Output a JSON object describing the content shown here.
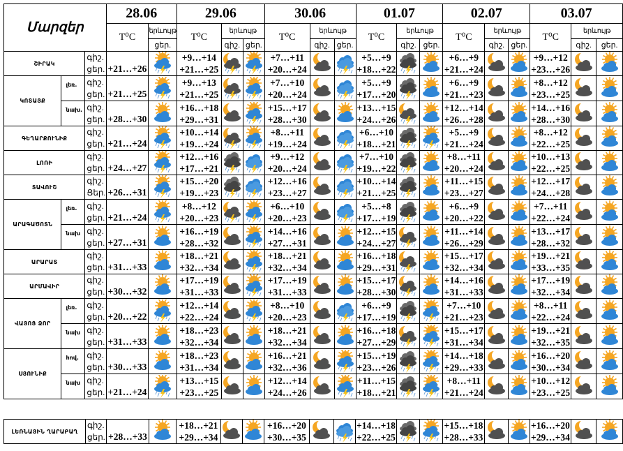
{
  "header": {
    "title": "Մարզեր",
    "temp_label": "T⁰C",
    "phenomenon_label": "երևույթ",
    "night_label": "գիշ.",
    "day_label": "ցեր.",
    "dates": [
      "28.06",
      "29.06",
      "30.06",
      "01.07",
      "02.07",
      "03.07"
    ]
  },
  "icon_legend": {
    "sc": "sun-behind-cloud-icon",
    "ssc": "sun-cloud-thunderstorm-icon",
    "rs": "rain-thunderstorm-cloud-icon",
    "mc": "moon-cloud-icon",
    "mcs": "moon-cloud-thunderstorm-icon",
    "ds": "dark-cloud-thunderstorm-icon"
  },
  "colors": {
    "sun": "#f5a623",
    "blue_cloud": "#2f86d6",
    "gray_cloud": "#505050",
    "lightning": "#f7c21a"
  },
  "regions": [
    {
      "name": "ՇԻՐԱԿ",
      "rows": [
        {
          "sub": "",
          "night_label": "գիշ.",
          "day_label": "ցեր.",
          "first": {
            "day": "+21…+26",
            "icon": "ssc"
          },
          "days": [
            {
              "night": "+9…+14",
              "day": "+21…+25",
              "n": "mcs",
              "d": "ssc"
            },
            {
              "night": "+7…+11",
              "day": "+20…+24",
              "n": "mc",
              "d": "rs"
            },
            {
              "night": "+5…+9",
              "day": "+18…+22",
              "n": "ds",
              "d": "sc"
            },
            {
              "night": "+6…+9",
              "day": "+21…+24",
              "n": "mc",
              "d": "sc"
            },
            {
              "night": "+9…+12",
              "day": "+23…+26",
              "n": "mc",
              "d": "sc"
            }
          ]
        }
      ]
    },
    {
      "name": "ԿՈՏԱՅՔ",
      "rows": [
        {
          "sub": "լեռ.",
          "night_label": "գիշ.",
          "day_label": "ցեր.",
          "first": {
            "day": "+21…+25",
            "icon": "ssc"
          },
          "days": [
            {
              "night": "+9…+13",
              "day": "+21…+25",
              "n": "mcs",
              "d": "ssc"
            },
            {
              "night": "+7…+10",
              "day": "+20…+24",
              "n": "mc",
              "d": "rs"
            },
            {
              "night": "+5…+9",
              "day": "+17…+20",
              "n": "ds",
              "d": "sc"
            },
            {
              "night": "+6…+9",
              "day": "+21…+23",
              "n": "mc",
              "d": "sc"
            },
            {
              "night": "+8…+12",
              "day": "+23…+25",
              "n": "mc",
              "d": "sc"
            }
          ]
        },
        {
          "sub": "նախ.",
          "night_label": "գիշ.",
          "day_label": "ցեր.",
          "first": {
            "day": "+28…+30",
            "icon": "sc"
          },
          "days": [
            {
              "night": "+16…+18",
              "day": "+29…+31",
              "n": "mc",
              "d": "ssc"
            },
            {
              "night": "+15…+17",
              "day": "+28…+30",
              "n": "mc",
              "d": "sc"
            },
            {
              "night": "+13…+15",
              "day": "+24…+26",
              "n": "mcs",
              "d": "sc"
            },
            {
              "night": "+12…+14",
              "day": "+26…+28",
              "n": "mc",
              "d": "sc"
            },
            {
              "night": "+14…+16",
              "day": "+28…+30",
              "n": "mc",
              "d": "sc"
            }
          ]
        }
      ]
    },
    {
      "name": "ԳԵՂԱՐՔՈՒՆԻՔ",
      "rows": [
        {
          "sub": "",
          "night_label": "գիշ.",
          "day_label": "ցեր.",
          "first": {
            "day": "+21…+24",
            "icon": "ssc"
          },
          "days": [
            {
              "night": "+10…+14",
              "day": "+19…+24",
              "n": "mcs",
              "d": "ssc"
            },
            {
              "night": "+8…+11",
              "day": "+19…+24",
              "n": "mc",
              "d": "rs"
            },
            {
              "night": "+6…+10",
              "day": "+18…+21",
              "n": "ds",
              "d": "ssc"
            },
            {
              "night": "+5…+9",
              "day": "+21…+24",
              "n": "mc",
              "d": "sc"
            },
            {
              "night": "+8…+12",
              "day": "+22…+25",
              "n": "mc",
              "d": "sc"
            }
          ]
        }
      ]
    },
    {
      "name": "ԼՈՌԻ",
      "rows": [
        {
          "sub": "",
          "night_label": "գիշ.",
          "day_label": "ցեր.",
          "first": {
            "day": "+24…+27",
            "icon": "ssc"
          },
          "days": [
            {
              "night": "+12…+16",
              "day": "+17…+21",
              "n": "ds",
              "d": "rs"
            },
            {
              "night": "+9…+12",
              "day": "+20…+24",
              "n": "mc",
              "d": "rs"
            },
            {
              "night": "+7…+10",
              "day": "+19…+22",
              "n": "ds",
              "d": "sc"
            },
            {
              "night": "+8…+11",
              "day": "+20…+24",
              "n": "mc",
              "d": "sc"
            },
            {
              "night": "+10…+13",
              "day": "+22…+25",
              "n": "mc",
              "d": "sc"
            }
          ]
        }
      ]
    },
    {
      "name": "ՏԱՎՈՒՇ",
      "rows": [
        {
          "sub": "",
          "night_label": "գիշ.",
          "day_label": "Ցեր.",
          "first": {
            "day": "+26…+31",
            "icon": "ssc"
          },
          "days": [
            {
              "night": "+15…+20",
              "day": "+19…+23",
              "n": "ds",
              "d": "rs"
            },
            {
              "night": "+12…+16",
              "day": "+23…+27",
              "n": "mc",
              "d": "rs"
            },
            {
              "night": "+10…+14",
              "day": "+21…+25",
              "n": "ds",
              "d": "sc"
            },
            {
              "night": "+11…+15",
              "day": "+23…+27",
              "n": "mc",
              "d": "sc"
            },
            {
              "night": "+12…+17",
              "day": "+24…+28",
              "n": "mc",
              "d": "sc"
            }
          ]
        }
      ]
    },
    {
      "name": "ԱՐԱԳԱԾՈՏՆ",
      "rows": [
        {
          "sub": "լեռ.",
          "night_label": "գիշ.",
          "day_label": "ցեր.",
          "first": {
            "day": "+21…+24",
            "icon": "ssc"
          },
          "days": [
            {
              "night": "+8…+12",
              "day": "+20…+23",
              "n": "mcs",
              "d": "ssc"
            },
            {
              "night": "+6…+10",
              "day": "+20…+23",
              "n": "mc",
              "d": "rs"
            },
            {
              "night": "+5…+8",
              "day": "+17…+19",
              "n": "ds",
              "d": "sc"
            },
            {
              "night": "+6…+9",
              "day": "+20…+22",
              "n": "mc",
              "d": "sc"
            },
            {
              "night": "+7…+11",
              "day": "+22…+24",
              "n": "mc",
              "d": "sc"
            }
          ]
        },
        {
          "sub": "նախ",
          "night_label": "գիշ.",
          "day_label": "ցեր.",
          "first": {
            "day": "+27…+31",
            "icon": "sc"
          },
          "days": [
            {
              "night": "+16…+19",
              "day": "+28…+32",
              "n": "mc",
              "d": "ssc"
            },
            {
              "night": "+14…+16",
              "day": "+27…+31",
              "n": "mc",
              "d": "sc"
            },
            {
              "night": "+12…+15",
              "day": "+24…+27",
              "n": "mcs",
              "d": "sc"
            },
            {
              "night": "+11…+14",
              "day": "+26…+29",
              "n": "mc",
              "d": "sc"
            },
            {
              "night": "+13…+17",
              "day": "+28…+32",
              "n": "mc",
              "d": "sc"
            }
          ]
        }
      ]
    },
    {
      "name": "ԱՐԱՐԱՏ",
      "rows": [
        {
          "sub": "",
          "night_label": "գիշ.",
          "day_label": "ցեր.",
          "first": {
            "day": "+31…+33",
            "icon": "sc"
          },
          "days": [
            {
              "night": "+18…+21",
              "day": "+32…+34",
              "n": "mc",
              "d": "ssc"
            },
            {
              "night": "+18…+21",
              "day": "+32…+34",
              "n": "mc",
              "d": "sc"
            },
            {
              "night": "+16…+18",
              "day": "+29…+31",
              "n": "mcs",
              "d": "sc"
            },
            {
              "night": "+15…+17",
              "day": "+32…+34",
              "n": "mc",
              "d": "sc"
            },
            {
              "night": "+19…+21",
              "day": "+33…+35",
              "n": "mc",
              "d": "sc"
            }
          ]
        }
      ]
    },
    {
      "name": "ԱՐՄԱՎԻՐ",
      "rows": [
        {
          "sub": "",
          "night_label": "գիշ.",
          "day_label": "ցեր.",
          "first": {
            "day": "+30…+32",
            "icon": "sc"
          },
          "days": [
            {
              "night": "+17…+19",
              "day": "+31…+33",
              "n": "mc",
              "d": "ssc"
            },
            {
              "night": "+17…+19",
              "day": "+31…+33",
              "n": "mc",
              "d": "sc"
            },
            {
              "night": "+15…+17",
              "day": "+28…+30",
              "n": "mcs",
              "d": "sc"
            },
            {
              "night": "+14…+16",
              "day": "+31…+33",
              "n": "mc",
              "d": "sc"
            },
            {
              "night": "+17…+19",
              "day": "+32…+34",
              "n": "mc",
              "d": "sc"
            }
          ]
        }
      ]
    },
    {
      "name": "ՎԱՅՈՑ ՁՈՐ",
      "rows": [
        {
          "sub": "լեռ.",
          "night_label": "գիշ.",
          "day_label": "ցեր.",
          "first": {
            "day": "+20…+22",
            "icon": "ssc"
          },
          "days": [
            {
              "night": "+12…+14",
              "day": "+22…+24",
              "n": "mc",
              "d": "ssc"
            },
            {
              "night": "+8…+10",
              "day": "+20…+23",
              "n": "mc",
              "d": "rs"
            },
            {
              "night": "+6…+9",
              "day": "+17…+19",
              "n": "ds",
              "d": "ssc"
            },
            {
              "night": "+7…+10",
              "day": "+21…+23",
              "n": "mc",
              "d": "sc"
            },
            {
              "night": "+8…+11",
              "day": "+22…+24",
              "n": "mc",
              "d": "sc"
            }
          ]
        },
        {
          "sub": "նախ",
          "night_label": "գիշ.",
          "day_label": "ցեր.",
          "first": {
            "day": "+31…+33",
            "icon": "sc"
          },
          "days": [
            {
              "night": "+18…+23",
              "day": "+32…+34",
              "n": "mc",
              "d": "sc"
            },
            {
              "night": "+18…+21",
              "day": "+32…+34",
              "n": "mc",
              "d": "sc"
            },
            {
              "night": "+16…+18",
              "day": "+27…+29",
              "n": "mcs",
              "d": "ssc"
            },
            {
              "night": "+15…+17",
              "day": "+31…+34",
              "n": "mc",
              "d": "sc"
            },
            {
              "night": "+19…+21",
              "day": "+32…+35",
              "n": "mc",
              "d": "sc"
            }
          ]
        }
      ]
    },
    {
      "name": "ՍՅՈՒՆԻՔ",
      "rows": [
        {
          "sub": "հով.",
          "night_label": "գիշ.",
          "day_label": "ցեր.",
          "first": {
            "day": "+30…+33",
            "icon": "sc"
          },
          "days": [
            {
              "night": "+18…+23",
              "day": "+31…+34",
              "n": "mc",
              "d": "sc"
            },
            {
              "night": "+16…+21",
              "day": "+32…+36",
              "n": "mc",
              "d": "ssc"
            },
            {
              "night": "+15…+19",
              "day": "+23…+26",
              "n": "ds",
              "d": "ssc"
            },
            {
              "night": "+14…+18",
              "day": "+29…+33",
              "n": "mc",
              "d": "sc"
            },
            {
              "night": "+16…+20",
              "day": "+30…+34",
              "n": "mc",
              "d": "sc"
            }
          ]
        },
        {
          "sub": "նախ",
          "night_label": "գիշ.",
          "day_label": "ցեր.",
          "first": {
            "day": "+21…+24",
            "icon": "ssc"
          },
          "days": [
            {
              "night": "+13…+15",
              "day": "+23…+25",
              "n": "mc",
              "d": "sc"
            },
            {
              "night": "+12…+14",
              "day": "+24…+26",
              "n": "mc",
              "d": "ssc"
            },
            {
              "night": "+11…+15",
              "day": "+18…+21",
              "n": "ds",
              "d": "ssc"
            },
            {
              "night": "+8…+11",
              "day": "+21…+24",
              "n": "mc",
              "d": "sc"
            },
            {
              "night": "+10…+12",
              "day": "+23…+25",
              "n": "mc",
              "d": "sc"
            }
          ]
        }
      ]
    }
  ],
  "karabakh": {
    "name": "ԼԵՌՆԱՅԻՆ ՂԱՐԱԲԱՂ",
    "rows": [
      {
        "sub": "",
        "night_label": "գիշ.",
        "day_label": "ցեր.",
        "first": {
          "day": "+28…+33",
          "icon": "sc"
        },
        "days": [
          {
            "night": "+18…+21",
            "day": "+29…+34",
            "n": "mc",
            "d": "sc"
          },
          {
            "night": "+16…+20",
            "day": "+30…+35",
            "n": "mc",
            "d": "rs"
          },
          {
            "night": "+14…+18",
            "day": "+22…+25",
            "n": "ds",
            "d": "ssc"
          },
          {
            "night": "+15…+18",
            "day": "+28…+33",
            "n": "mc",
            "d": "sc"
          },
          {
            "night": "+16…+20",
            "day": "+29…+34",
            "n": "mc",
            "d": "sc"
          }
        ]
      }
    ]
  }
}
